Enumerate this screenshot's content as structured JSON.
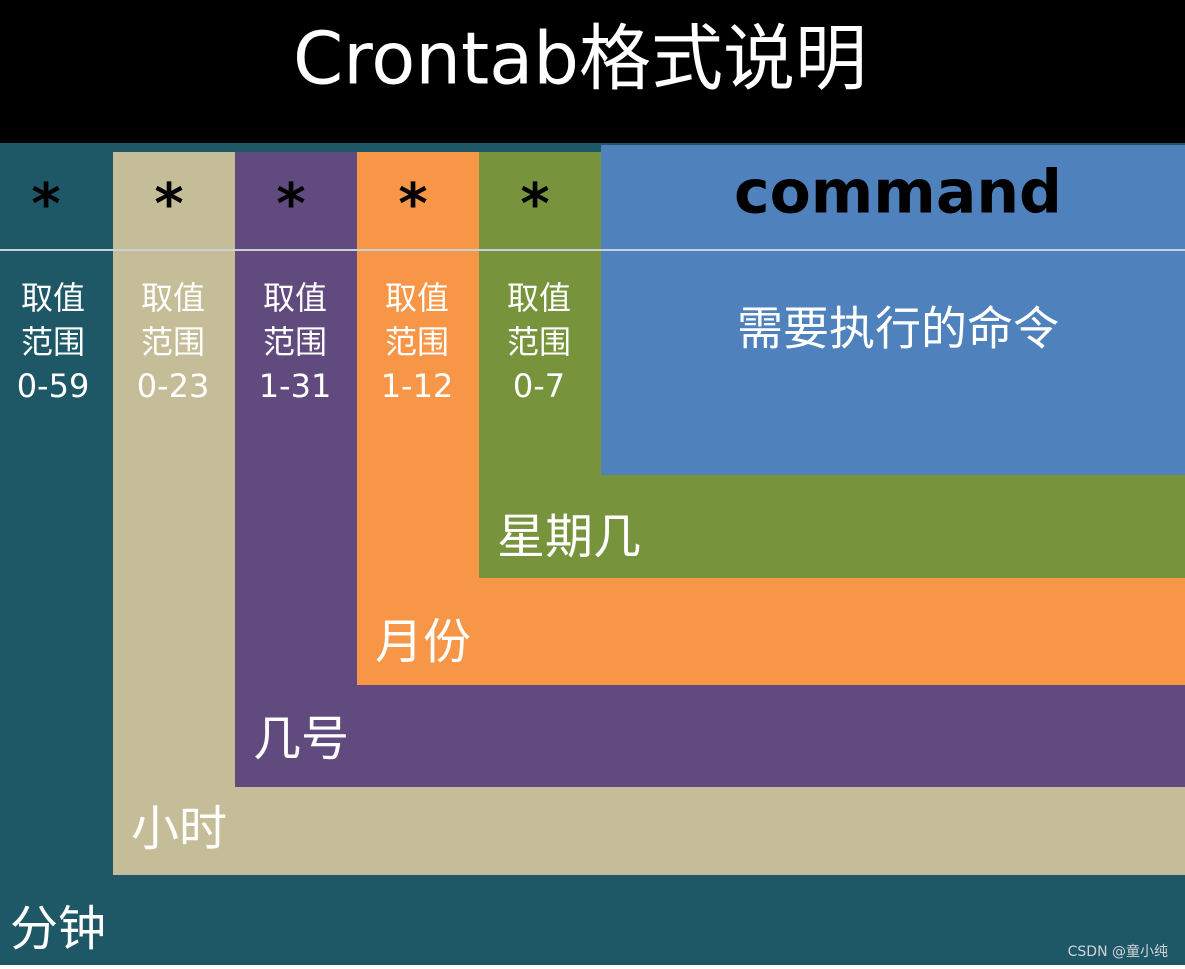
{
  "title": "Crontab格式说明",
  "fields": [
    {
      "symbol": "*",
      "range_lines": [
        "取值",
        "范围",
        "0-59"
      ],
      "name": "分钟"
    },
    {
      "symbol": "*",
      "range_lines": [
        "取值",
        "范围",
        "0-23"
      ],
      "name": "小时"
    },
    {
      "symbol": "*",
      "range_lines": [
        "取值",
        "范围",
        "1-31"
      ],
      "name": "几号"
    },
    {
      "symbol": "*",
      "range_lines": [
        "取值",
        "范围",
        "1-12"
      ],
      "name": "月份"
    },
    {
      "symbol": "*",
      "range_lines": [
        "取值",
        "范围",
        "0-7"
      ],
      "name": "星期几"
    }
  ],
  "command": {
    "name": "command",
    "description": "需要执行的命令"
  },
  "watermark": "CSDN @童小纯"
}
